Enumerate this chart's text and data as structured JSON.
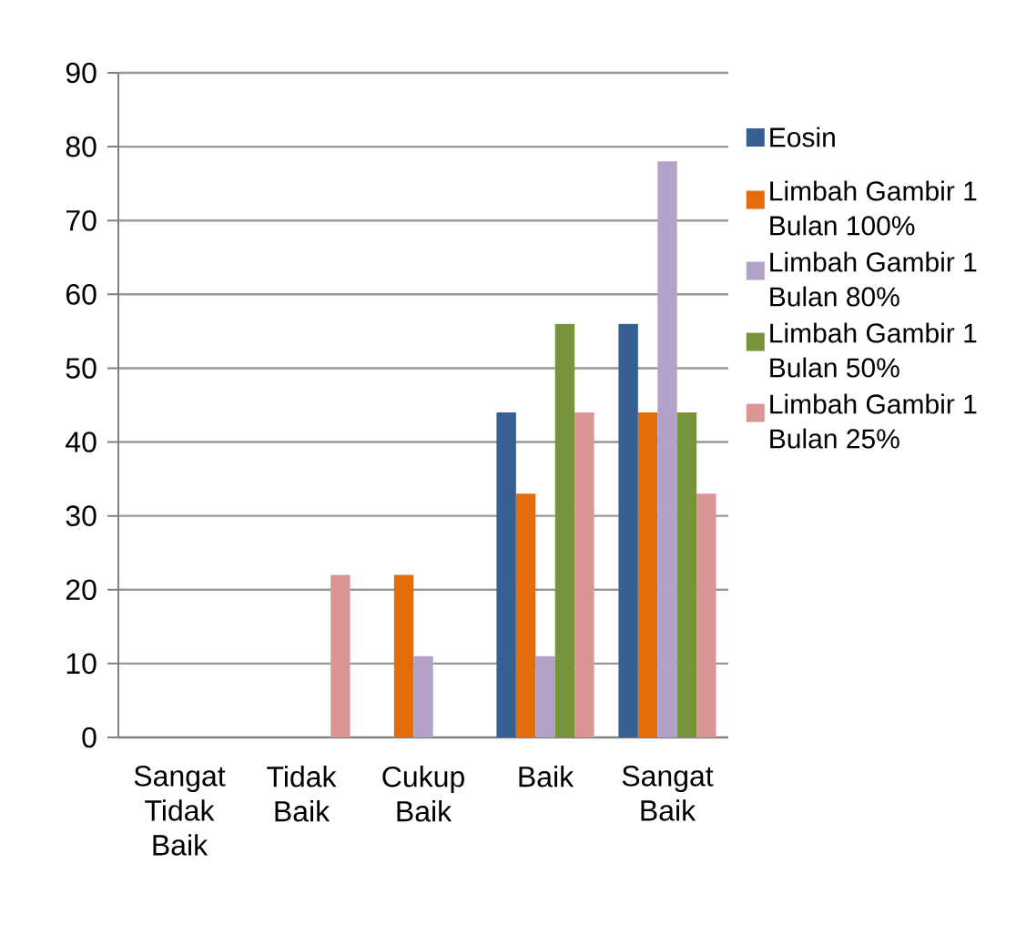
{
  "chart_data": {
    "type": "bar",
    "categories": [
      "Sangat Tidak Baik",
      "Tidak Baik",
      "Cukup Baik",
      "Baik",
      "Sangat Baik"
    ],
    "series": [
      {
        "name": "Eosin",
        "color": "#366092",
        "values": [
          0,
          0,
          0,
          44,
          56
        ]
      },
      {
        "name": "Limbah Gambir 1 Bulan 100%",
        "color": "#e46c0a",
        "values": [
          0,
          0,
          22,
          33,
          44
        ]
      },
      {
        "name": "Limbah Gambir 1 Bulan 80%",
        "color": "#b3a2c7",
        "values": [
          0,
          0,
          11,
          11,
          78
        ]
      },
      {
        "name": "Limbah Gambir 1 Bulan 50%",
        "color": "#77933c",
        "values": [
          0,
          0,
          0,
          56,
          44
        ]
      },
      {
        "name": "Limbah Gambir 1 Bulan 25%",
        "color": "#d99694",
        "values": [
          0,
          22,
          0,
          44,
          33
        ]
      }
    ],
    "ylim": [
      0,
      90
    ],
    "yticks": [
      0,
      10,
      20,
      30,
      40,
      50,
      60,
      70,
      80,
      90
    ],
    "grid": "y",
    "legend": "right"
  }
}
